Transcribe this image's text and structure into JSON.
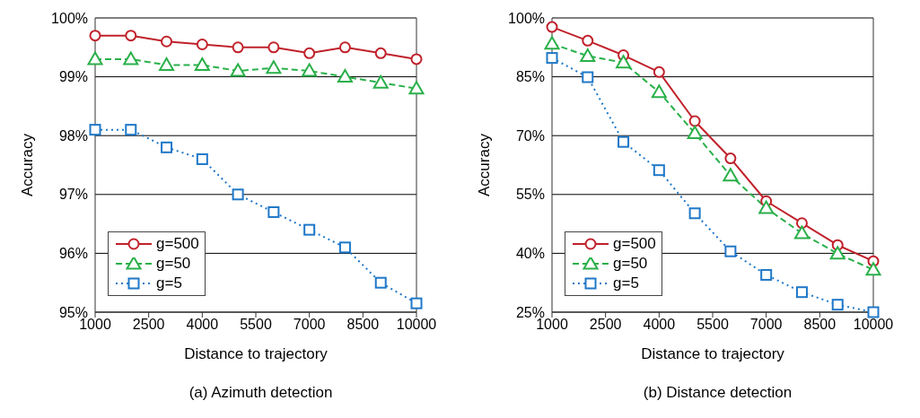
{
  "chart_data": [
    {
      "type": "line",
      "title": "(a) Azimuth detection",
      "xlabel": "Distance to trajectory",
      "ylabel": "Accuracy",
      "x": [
        1000,
        2000,
        3000,
        4000,
        5000,
        6000,
        7000,
        8000,
        9000,
        10000
      ],
      "xlim": [
        1000,
        10000
      ],
      "xticks": [
        1000,
        2500,
        4000,
        5500,
        7000,
        8500,
        10000
      ],
      "ylim": [
        95,
        100
      ],
      "yticks": [
        {
          "value": 95,
          "label": "95%"
        },
        {
          "value": 96,
          "label": "96%"
        },
        {
          "value": 97,
          "label": "97%"
        },
        {
          "value": 98,
          "label": "98%"
        },
        {
          "value": 99,
          "label": "99%"
        },
        {
          "value": 100,
          "label": "100%"
        }
      ],
      "grid": "y",
      "legend": "bottom left",
      "series": [
        {
          "name": "g=500",
          "color": "#c0222b",
          "marker": "circle",
          "line_style": "solid",
          "values": [
            99.7,
            99.7,
            99.6,
            99.55,
            99.5,
            99.5,
            99.4,
            99.5,
            99.4,
            99.3
          ]
        },
        {
          "name": "g=50",
          "color": "#2ab04a",
          "marker": "triangle",
          "line_style": "dashed",
          "values": [
            99.3,
            99.3,
            99.2,
            99.2,
            99.1,
            99.15,
            99.1,
            99.0,
            98.9,
            98.8
          ]
        },
        {
          "name": "g=5",
          "color": "#1f78c8",
          "marker": "square",
          "line_style": "dotted",
          "values": [
            98.1,
            98.1,
            97.8,
            97.6,
            97.0,
            96.7,
            96.4,
            96.1,
            95.5,
            95.15
          ]
        }
      ]
    },
    {
      "type": "line",
      "title": "(b) Distance detection",
      "xlabel": "Distance to trajectory",
      "ylabel": "Accuracy",
      "x": [
        1000,
        2000,
        3000,
        4000,
        5000,
        6000,
        7000,
        8000,
        9000,
        10000
      ],
      "xlim": [
        1000,
        10000
      ],
      "xticks": [
        1000,
        2500,
        4000,
        5500,
        7000,
        8500,
        10000
      ],
      "ylim": [
        25,
        100
      ],
      "yticks": [
        {
          "value": 25,
          "label": "25%"
        },
        {
          "value": 40,
          "label": "40%"
        },
        {
          "value": 55,
          "label": "55%"
        },
        {
          "value": 70,
          "label": "70%"
        },
        {
          "value": 85,
          "label": "85%"
        },
        {
          "value": 100,
          "label": "100%"
        }
      ],
      "grid": "y",
      "legend": "bottom left",
      "series": [
        {
          "name": "g=500",
          "color": "#c0222b",
          "marker": "circle",
          "line_style": "solid",
          "values": [
            97.7,
            94.2,
            90.5,
            86.2,
            73.7,
            64.2,
            53.3,
            47.7,
            42.1,
            38.0
          ]
        },
        {
          "name": "g=50",
          "color": "#2ab04a",
          "marker": "triangle",
          "line_style": "dashed",
          "values": [
            93.4,
            90.3,
            88.6,
            81.1,
            70.6,
            59.8,
            51.5,
            45.1,
            39.9,
            35.8
          ]
        },
        {
          "name": "g=5",
          "color": "#1f78c8",
          "marker": "square",
          "line_style": "dotted",
          "values": [
            89.8,
            84.9,
            68.4,
            61.2,
            50.2,
            40.5,
            34.5,
            30.1,
            26.9,
            25.0
          ]
        }
      ]
    }
  ]
}
